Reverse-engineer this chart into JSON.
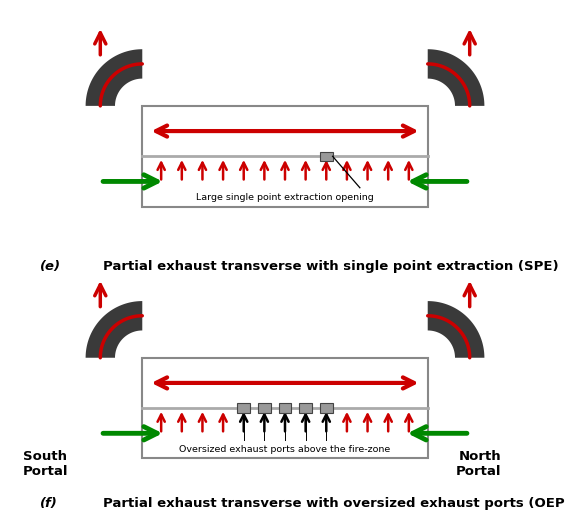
{
  "bg_color": "#ffffff",
  "duct_color": "#3a3a3a",
  "red_color": "#cc0000",
  "green_color": "#008800",
  "black_color": "#000000",
  "tunnel_border": "#888888",
  "sep_color": "#aaaaaa",
  "box_color": "#888888",
  "box_edge": "#555555",
  "text_e": "Large single point extraction opening",
  "text_f": "Oversized exhaust ports above the fire-zone",
  "caption_e_label": "(e)",
  "caption_e_text": "Partial exhaust transverse with single point extraction (SPE)",
  "caption_f_label": "(f)",
  "caption_f_text": "Partial exhaust transverse with oversized exhaust ports (OEP",
  "south_portal": "South\nPortal",
  "north_portal": "North\nPortal",
  "fig_width": 5.7,
  "fig_height": 5.14,
  "dpi": 100
}
